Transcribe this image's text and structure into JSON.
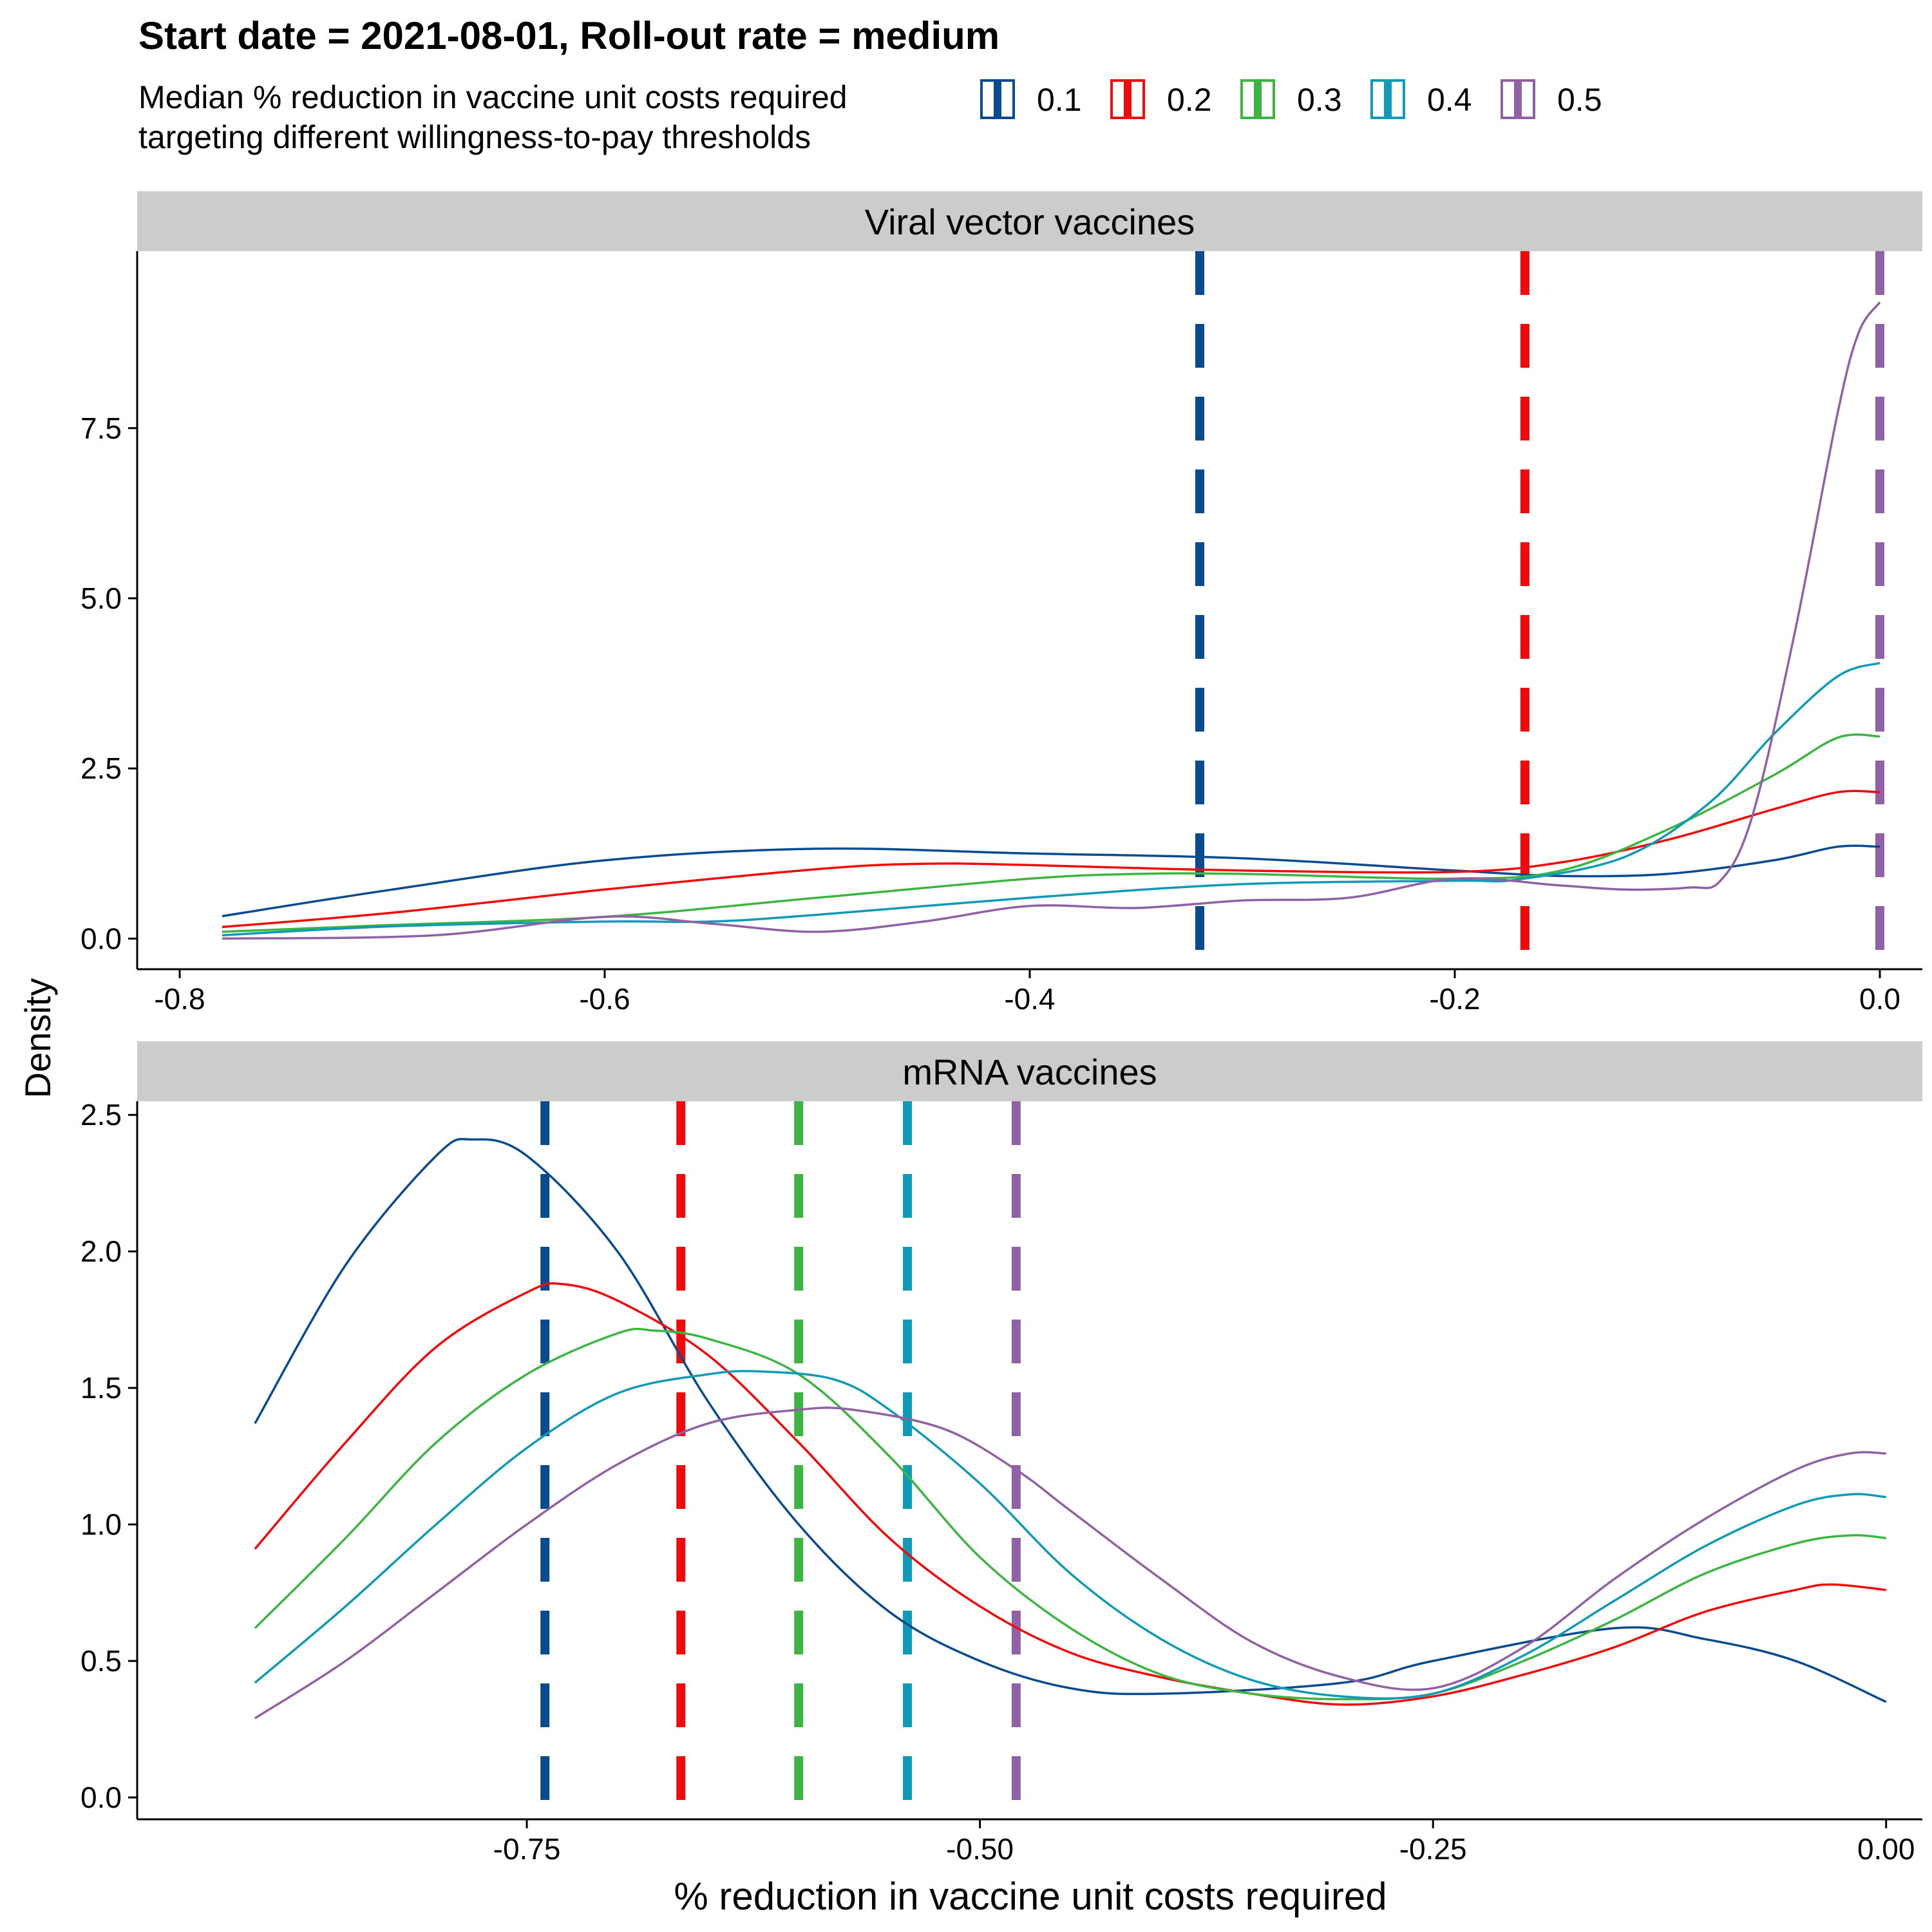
{
  "title": "Start date = 2021-08-01, Roll-out rate = medium",
  "legend": {
    "title_line1": "Median % reduction in vaccine unit costs required",
    "title_line2": "targeting different willingness-to-pay thresholds",
    "items": [
      {
        "label": "0.1",
        "color": "#0a4a8f"
      },
      {
        "label": "0.2",
        "color": "#f00a0a"
      },
      {
        "label": "0.3",
        "color": "#3cb541"
      },
      {
        "label": "0.4",
        "color": "#0f9ab5"
      },
      {
        "label": "0.5",
        "color": "#9161a6"
      }
    ]
  },
  "chart_data": [
    {
      "type": "line",
      "panel": "Viral vector vaccines",
      "ylabel": "Density",
      "xlim": [
        -0.82,
        0.02
      ],
      "ylim": [
        -0.45,
        10.1
      ],
      "xticks": [
        -0.8,
        -0.6,
        -0.4,
        -0.2,
        0.0
      ],
      "xtick_labels": [
        "-0.8",
        "-0.6",
        "-0.4",
        "-0.2",
        "0.0"
      ],
      "yticks": [
        0.0,
        2.5,
        5.0,
        7.5
      ],
      "ytick_labels": [
        "0.0",
        "2.5",
        "5.0",
        "7.5"
      ],
      "medians": [
        {
          "series": "0.1",
          "x": -0.32
        },
        {
          "series": "0.2",
          "x": -0.167
        },
        {
          "series": "0.3",
          "x": 0.0
        },
        {
          "series": "0.4",
          "x": 0.0
        },
        {
          "series": "0.5",
          "x": 0.0
        }
      ],
      "series": [
        {
          "name": "0.1",
          "points": [
            [
              -0.78,
              0.33
            ],
            [
              -0.7,
              0.72
            ],
            [
              -0.6,
              1.15
            ],
            [
              -0.5,
              1.32
            ],
            [
              -0.4,
              1.25
            ],
            [
              -0.3,
              1.18
            ],
            [
              -0.2,
              1.0
            ],
            [
              -0.15,
              0.92
            ],
            [
              -0.1,
              0.95
            ],
            [
              -0.05,
              1.15
            ],
            [
              -0.02,
              1.35
            ],
            [
              0.0,
              1.35
            ]
          ]
        },
        {
          "series_note": "",
          "name": "0.2",
          "points": [
            [
              -0.78,
              0.17
            ],
            [
              -0.7,
              0.38
            ],
            [
              -0.6,
              0.72
            ],
            [
              -0.5,
              1.02
            ],
            [
              -0.45,
              1.1
            ],
            [
              -0.4,
              1.08
            ],
            [
              -0.3,
              1.0
            ],
            [
              -0.2,
              0.98
            ],
            [
              -0.15,
              1.12
            ],
            [
              -0.1,
              1.45
            ],
            [
              -0.05,
              1.9
            ],
            [
              -0.02,
              2.15
            ],
            [
              0.0,
              2.15
            ]
          ]
        },
        {
          "name": "0.3",
          "points": [
            [
              -0.78,
              0.1
            ],
            [
              -0.7,
              0.2
            ],
            [
              -0.6,
              0.32
            ],
            [
              -0.5,
              0.6
            ],
            [
              -0.4,
              0.88
            ],
            [
              -0.35,
              0.95
            ],
            [
              -0.3,
              0.95
            ],
            [
              -0.2,
              0.88
            ],
            [
              -0.15,
              1.0
            ],
            [
              -0.1,
              1.6
            ],
            [
              -0.05,
              2.4
            ],
            [
              -0.02,
              2.95
            ],
            [
              0.0,
              2.97
            ]
          ]
        },
        {
          "name": "0.4",
          "points": [
            [
              -0.78,
              0.05
            ],
            [
              -0.7,
              0.18
            ],
            [
              -0.6,
              0.25
            ],
            [
              -0.55,
              0.25
            ],
            [
              -0.5,
              0.35
            ],
            [
              -0.4,
              0.6
            ],
            [
              -0.3,
              0.8
            ],
            [
              -0.2,
              0.85
            ],
            [
              -0.17,
              0.87
            ],
            [
              -0.12,
              1.2
            ],
            [
              -0.08,
              2.0
            ],
            [
              -0.05,
              3.0
            ],
            [
              -0.02,
              3.85
            ],
            [
              0.0,
              4.05
            ]
          ]
        },
        {
          "name": "0.5",
          "points": [
            [
              -0.78,
              0.0
            ],
            [
              -0.68,
              0.05
            ],
            [
              -0.6,
              0.32
            ],
            [
              -0.55,
              0.22
            ],
            [
              -0.5,
              0.1
            ],
            [
              -0.45,
              0.25
            ],
            [
              -0.4,
              0.48
            ],
            [
              -0.35,
              0.45
            ],
            [
              -0.3,
              0.56
            ],
            [
              -0.25,
              0.6
            ],
            [
              -0.2,
              0.88
            ],
            [
              -0.15,
              0.78
            ],
            [
              -0.12,
              0.72
            ],
            [
              -0.09,
              0.75
            ],
            [
              -0.075,
              0.85
            ],
            [
              -0.06,
              1.8
            ],
            [
              -0.04,
              4.5
            ],
            [
              -0.02,
              7.7
            ],
            [
              -0.01,
              8.9
            ],
            [
              0.0,
              9.35
            ]
          ]
        }
      ]
    },
    {
      "type": "line",
      "panel": "mRNA vaccines",
      "xlabel": "% reduction in vaccine unit costs required",
      "ylabel": "Density",
      "xlim": [
        -0.965,
        0.02
      ],
      "ylim": [
        -0.08,
        2.55
      ],
      "xticks": [
        -0.75,
        -0.5,
        -0.25,
        0.0
      ],
      "xtick_labels": [
        "-0.75",
        "-0.50",
        "-0.25",
        "0.00"
      ],
      "yticks": [
        0.0,
        0.5,
        1.0,
        1.5,
        2.0,
        2.5
      ],
      "ytick_labels": [
        "0.0",
        "0.5",
        "1.0",
        "1.5",
        "2.0",
        "2.5"
      ],
      "medians": [
        {
          "series": "0.1",
          "x": -0.74
        },
        {
          "series": "0.2",
          "x": -0.665
        },
        {
          "series": "0.3",
          "x": -0.6
        },
        {
          "series": "0.4",
          "x": -0.54
        },
        {
          "series": "0.5",
          "x": -0.48
        }
      ],
      "series": [
        {
          "name": "0.1",
          "points": [
            [
              -0.9,
              1.37
            ],
            [
              -0.85,
              1.95
            ],
            [
              -0.8,
              2.35
            ],
            [
              -0.78,
              2.41
            ],
            [
              -0.75,
              2.35
            ],
            [
              -0.7,
              2.0
            ],
            [
              -0.65,
              1.45
            ],
            [
              -0.6,
              1.0
            ],
            [
              -0.55,
              0.68
            ],
            [
              -0.5,
              0.5
            ],
            [
              -0.45,
              0.4
            ],
            [
              -0.4,
              0.38
            ],
            [
              -0.3,
              0.42
            ],
            [
              -0.25,
              0.5
            ],
            [
              -0.15,
              0.62
            ],
            [
              -0.1,
              0.58
            ],
            [
              -0.05,
              0.5
            ],
            [
              0.0,
              0.35
            ]
          ]
        },
        {
          "name": "0.2",
          "points": [
            [
              -0.9,
              0.91
            ],
            [
              -0.85,
              1.3
            ],
            [
              -0.8,
              1.65
            ],
            [
              -0.75,
              1.85
            ],
            [
              -0.73,
              1.88
            ],
            [
              -0.7,
              1.82
            ],
            [
              -0.65,
              1.62
            ],
            [
              -0.6,
              1.3
            ],
            [
              -0.55,
              0.95
            ],
            [
              -0.5,
              0.7
            ],
            [
              -0.45,
              0.53
            ],
            [
              -0.4,
              0.44
            ],
            [
              -0.35,
              0.38
            ],
            [
              -0.3,
              0.34
            ],
            [
              -0.25,
              0.37
            ],
            [
              -0.2,
              0.45
            ],
            [
              -0.15,
              0.55
            ],
            [
              -0.1,
              0.68
            ],
            [
              -0.05,
              0.76
            ],
            [
              -0.03,
              0.78
            ],
            [
              0.0,
              0.76
            ]
          ]
        },
        {
          "name": "0.3",
          "points": [
            [
              -0.9,
              0.62
            ],
            [
              -0.85,
              0.95
            ],
            [
              -0.8,
              1.3
            ],
            [
              -0.75,
              1.55
            ],
            [
              -0.7,
              1.7
            ],
            [
              -0.68,
              1.71
            ],
            [
              -0.65,
              1.68
            ],
            [
              -0.6,
              1.55
            ],
            [
              -0.55,
              1.25
            ],
            [
              -0.5,
              0.88
            ],
            [
              -0.45,
              0.62
            ],
            [
              -0.4,
              0.45
            ],
            [
              -0.35,
              0.38
            ],
            [
              -0.3,
              0.36
            ],
            [
              -0.25,
              0.38
            ],
            [
              -0.2,
              0.5
            ],
            [
              -0.15,
              0.65
            ],
            [
              -0.1,
              0.82
            ],
            [
              -0.05,
              0.93
            ],
            [
              -0.02,
              0.96
            ],
            [
              0.0,
              0.95
            ]
          ]
        },
        {
          "name": "0.4",
          "points": [
            [
              -0.9,
              0.42
            ],
            [
              -0.85,
              0.7
            ],
            [
              -0.8,
              1.0
            ],
            [
              -0.75,
              1.28
            ],
            [
              -0.7,
              1.48
            ],
            [
              -0.65,
              1.55
            ],
            [
              -0.62,
              1.56
            ],
            [
              -0.58,
              1.53
            ],
            [
              -0.55,
              1.42
            ],
            [
              -0.5,
              1.15
            ],
            [
              -0.45,
              0.82
            ],
            [
              -0.4,
              0.58
            ],
            [
              -0.35,
              0.43
            ],
            [
              -0.3,
              0.37
            ],
            [
              -0.25,
              0.38
            ],
            [
              -0.2,
              0.52
            ],
            [
              -0.15,
              0.72
            ],
            [
              -0.1,
              0.92
            ],
            [
              -0.05,
              1.07
            ],
            [
              -0.02,
              1.11
            ],
            [
              0.0,
              1.1
            ]
          ]
        },
        {
          "name": "0.5",
          "points": [
            [
              -0.9,
              0.29
            ],
            [
              -0.85,
              0.5
            ],
            [
              -0.8,
              0.75
            ],
            [
              -0.75,
              1.0
            ],
            [
              -0.7,
              1.22
            ],
            [
              -0.65,
              1.37
            ],
            [
              -0.6,
              1.42
            ],
            [
              -0.57,
              1.42
            ],
            [
              -0.52,
              1.35
            ],
            [
              -0.48,
              1.2
            ],
            [
              -0.45,
              1.05
            ],
            [
              -0.4,
              0.8
            ],
            [
              -0.35,
              0.57
            ],
            [
              -0.3,
              0.44
            ],
            [
              -0.25,
              0.4
            ],
            [
              -0.2,
              0.55
            ],
            [
              -0.15,
              0.8
            ],
            [
              -0.1,
              1.02
            ],
            [
              -0.05,
              1.2
            ],
            [
              -0.02,
              1.26
            ],
            [
              0.0,
              1.26
            ]
          ]
        }
      ]
    }
  ]
}
